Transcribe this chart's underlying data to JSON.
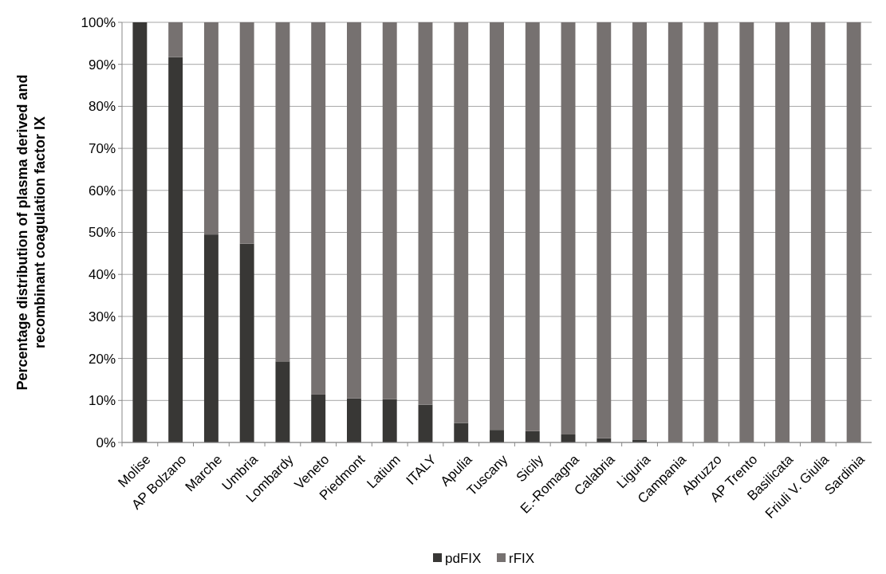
{
  "chart_data": {
    "type": "bar",
    "stacked": true,
    "ylabel": "Percentage distribution of plasma derived and recombinant coagulation factor IX",
    "categories": [
      "Molise",
      "AP Bolzano",
      "Marche",
      "Umbria",
      "Lombardy",
      "Veneto",
      "Piedmont",
      "Latium",
      "ITALY",
      "Apulia",
      "Tuscany",
      "Sicily",
      "E.-Romagna",
      "Calabria",
      "Liguria",
      "Campania",
      "Abruzzo",
      "AP Trento",
      "Basilicata",
      "Friuli V. Giulia",
      "Sardinia"
    ],
    "series": [
      {
        "name": "pdFIX",
        "color": "#383735",
        "values": [
          100,
          91.7,
          49.5,
          47.3,
          19.3,
          11.4,
          10.5,
          10.3,
          9.0,
          4.6,
          3.0,
          2.7,
          1.9,
          1.0,
          0.7,
          0,
          0,
          0,
          0,
          0,
          0
        ]
      },
      {
        "name": "rFIX",
        "color": "#767170",
        "values": [
          0,
          8.3,
          50.5,
          52.7,
          80.7,
          88.6,
          89.5,
          89.7,
          91.0,
          95.4,
          97.0,
          97.3,
          98.1,
          99.0,
          99.3,
          100,
          100,
          100,
          100,
          100,
          100
        ]
      }
    ],
    "ylim": [
      0,
      100
    ],
    "yticks": [
      {
        "value": 0,
        "label": "0%"
      },
      {
        "value": 10,
        "label": "10%"
      },
      {
        "value": 20,
        "label": "20%"
      },
      {
        "value": 30,
        "label": "30%"
      },
      {
        "value": 40,
        "label": "40%"
      },
      {
        "value": 50,
        "label": "50%"
      },
      {
        "value": 60,
        "label": "60%"
      },
      {
        "value": 70,
        "label": "70%"
      },
      {
        "value": 80,
        "label": "80%"
      },
      {
        "value": 90,
        "label": "90%"
      },
      {
        "value": 100,
        "label": "100%"
      }
    ],
    "grid": "y",
    "legend": "bottom"
  }
}
